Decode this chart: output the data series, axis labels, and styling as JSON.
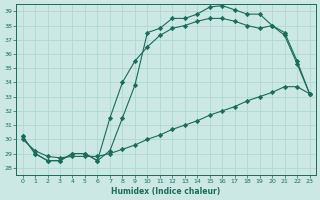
{
  "xlabel": "Humidex (Indice chaleur)",
  "bg_color": "#cce8e5",
  "line_color": "#1a6b5a",
  "grid_color": "#b0d8d4",
  "xlim": [
    -0.5,
    23.5
  ],
  "ylim": [
    27.5,
    39.5
  ],
  "xticks": [
    0,
    1,
    2,
    3,
    4,
    5,
    6,
    7,
    8,
    9,
    10,
    11,
    12,
    13,
    14,
    15,
    16,
    17,
    18,
    19,
    20,
    21,
    22,
    23
  ],
  "yticks": [
    28,
    29,
    30,
    31,
    32,
    33,
    34,
    35,
    36,
    37,
    38,
    39
  ],
  "line1_x": [
    0,
    1,
    2,
    3,
    4,
    5,
    6,
    7,
    8,
    9,
    10,
    11,
    12,
    13,
    14,
    15,
    16,
    17,
    18,
    19,
    20,
    21,
    22,
    23
  ],
  "line1_y": [
    30.2,
    29.0,
    28.5,
    28.5,
    29.0,
    29.0,
    28.5,
    29.2,
    31.5,
    33.8,
    37.5,
    37.8,
    38.5,
    38.5,
    38.8,
    39.3,
    39.4,
    39.1,
    38.8,
    38.8,
    38.0,
    37.3,
    35.3,
    33.2
  ],
  "line2_x": [
    0,
    1,
    2,
    3,
    4,
    5,
    6,
    7,
    8,
    9,
    10,
    11,
    12,
    13,
    14,
    15,
    16,
    17,
    18,
    19,
    20,
    21,
    22,
    23
  ],
  "line2_y": [
    30.2,
    29.0,
    28.5,
    28.5,
    29.0,
    29.0,
    28.5,
    31.5,
    34.0,
    35.5,
    36.5,
    37.3,
    37.8,
    38.0,
    38.3,
    38.5,
    38.5,
    38.3,
    38.0,
    37.8,
    38.0,
    37.5,
    35.5,
    33.2
  ],
  "line3_x": [
    0,
    1,
    2,
    3,
    4,
    5,
    6,
    7,
    8,
    9,
    10,
    11,
    12,
    13,
    14,
    15,
    16,
    17,
    18,
    19,
    20,
    21,
    22,
    23
  ],
  "line3_y": [
    30.0,
    29.2,
    28.8,
    28.7,
    28.8,
    28.8,
    28.8,
    29.0,
    29.3,
    29.6,
    30.0,
    30.3,
    30.7,
    31.0,
    31.3,
    31.7,
    32.0,
    32.3,
    32.7,
    33.0,
    33.3,
    33.7,
    33.7,
    33.2
  ]
}
